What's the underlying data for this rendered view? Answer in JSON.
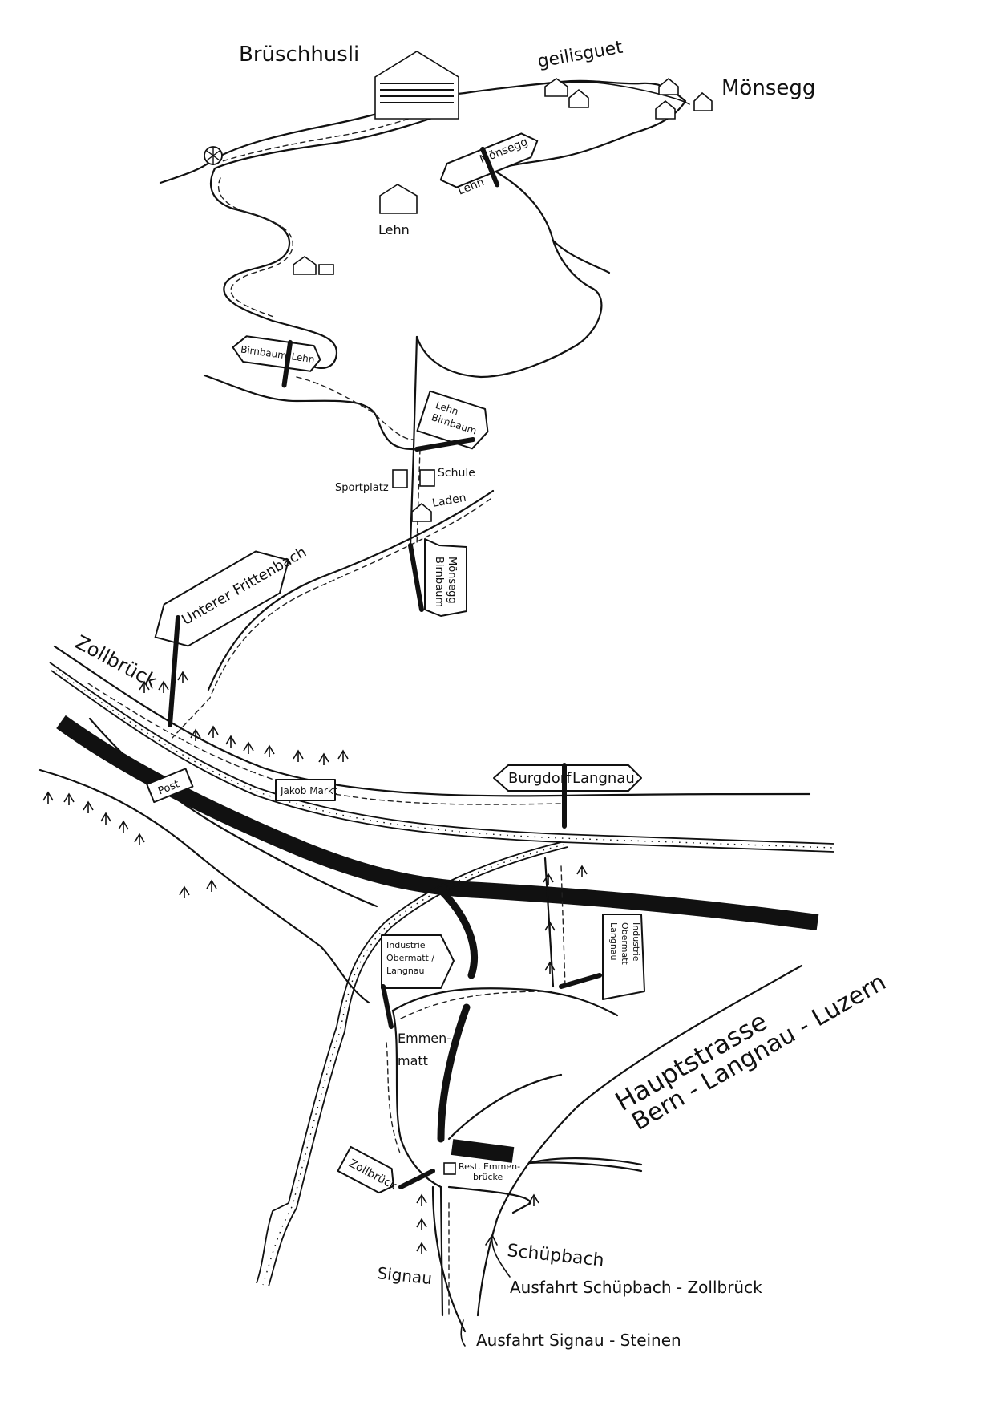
{
  "places": {
    "bruschhusli": "Brüschhusli",
    "geilisguet": "geilisguet",
    "monsegg": "Mönsegg",
    "lehn": "Lehn",
    "sportplatz": "Sportplatz",
    "schule": "Schule",
    "laden": "Laden",
    "zollbruck": "Zollbrück",
    "emmenmatt": "Emmen-\nmatt",
    "rest_emmenbrucke": "Rest. Emmen-\nbrücke",
    "schupbach": "Schüpbach",
    "signau": "Signau"
  },
  "signs": {
    "lehn_monsegg": {
      "left": "Lehn",
      "right": "Mönsegg"
    },
    "birnbaum_lehn": {
      "left": "Birnbaum",
      "right": "Lehn"
    },
    "lehn_birnbaum": "Lehn\nBirnbaum",
    "monsegg_birnbaum": "Mönsegg\nBirnbaum",
    "unterer_frittenbach": "Unterer Frittenbach",
    "burgdorf_langnau": {
      "left": "Burgdorf",
      "right": "Langnau"
    },
    "post": "Post",
    "jakob_markt": "Jakob Markt",
    "industrie_center": "Industrie\nObermatt /\nLangnau",
    "industrie_right": "Industrie\nObermatt\nLangnau",
    "zollbruck_sign": "Zollbrück"
  },
  "labels": {
    "hauptstrasse": "Hauptstrasse",
    "route": "Bern - Langnau - Luzern",
    "ausfahrt_schupbach": "Ausfahrt    Schüpbach - Zollbrück",
    "ausfahrt_signau": "Ausfahrt  Signau - Steinen"
  }
}
